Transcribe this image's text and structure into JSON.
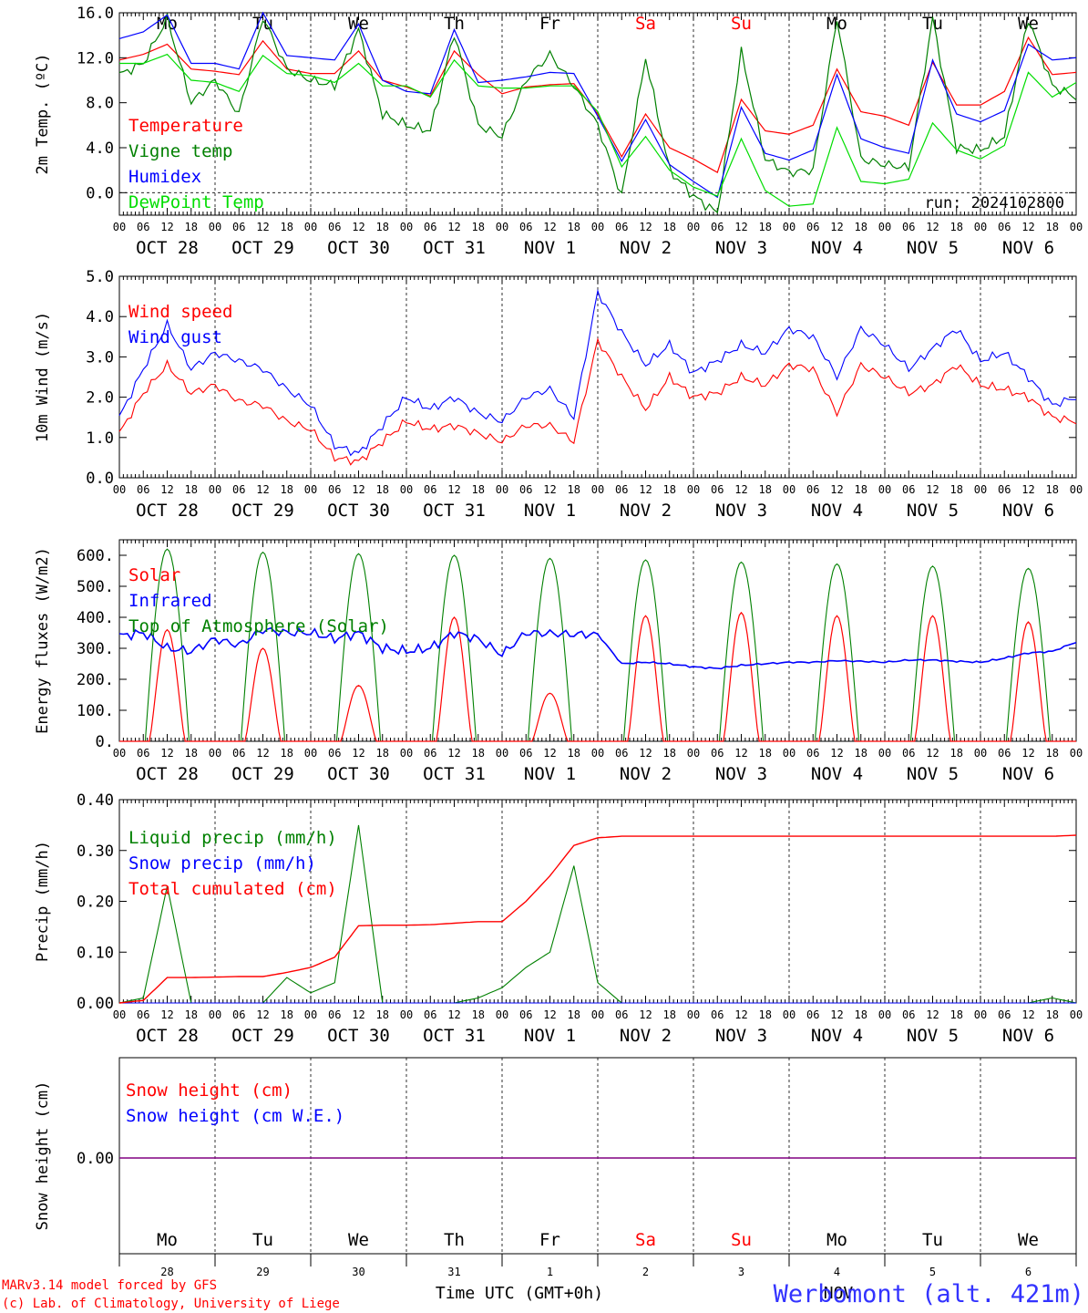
{
  "colors": {
    "red": "#ff0000",
    "blue": "#0000ff",
    "green": "#008000",
    "lightgreen": "#00dd00",
    "snow": "#800080"
  },
  "days": [
    "Mo",
    "Tu",
    "We",
    "Th",
    "Fr",
    "Sa",
    "Su",
    "Mo",
    "Tu",
    "We"
  ],
  "weekend_days": [
    "Sa",
    "Su"
  ],
  "date_labels": [
    "OCT 28",
    "OCT 29",
    "OCT 30",
    "OCT 31",
    "NOV 1",
    "NOV 2",
    "NOV 3",
    "NOV 4",
    "NOV 5",
    "NOV 6"
  ],
  "hour_labels": [
    "00",
    "06",
    "12",
    "18"
  ],
  "hour_label_end": "00",
  "bottom_day_numbers": [
    "28",
    "29",
    "30",
    "31",
    "1",
    "2",
    "3",
    "4",
    "5",
    "6"
  ],
  "footer": {
    "model_line": "MARv3.14 model forced by GFS",
    "credit_line": "(c) Lab. of Climatology, University of Liege",
    "xlabel": "Time UTC (GMT+0h)",
    "month_label": "NOV",
    "station": "Werbomont (alt. 421m)"
  },
  "chart_data": [
    {
      "type": "line",
      "ylabel": "2m Temp. (ºC)",
      "ylim": [
        -2,
        16
      ],
      "yticks": [
        "0.0",
        "4.0",
        "8.0",
        "12.0",
        "16.0"
      ],
      "annotation": "run: 2024102800",
      "x_hours": [
        0,
        6,
        12,
        18,
        24,
        30,
        36,
        42,
        48,
        54,
        60,
        66,
        72,
        78,
        84,
        90,
        96,
        102,
        108,
        114,
        120,
        126,
        132,
        138,
        144,
        150,
        156,
        162,
        168,
        174,
        180,
        186,
        192,
        198,
        204,
        210,
        216,
        222,
        228,
        234,
        240
      ],
      "series": [
        {
          "name": "Temperature",
          "color": "red",
          "values": [
            11.8,
            12.3,
            13.2,
            11.0,
            10.8,
            10.5,
            13.5,
            11.0,
            10.6,
            10.6,
            12.6,
            10.0,
            9.4,
            8.6,
            12.6,
            10.5,
            8.8,
            9.4,
            9.6,
            9.7,
            7.0,
            3.2,
            7.0,
            4.0,
            3.0,
            1.8,
            8.3,
            5.5,
            5.2,
            6.0,
            11.0,
            7.2,
            6.8,
            6.0,
            11.6,
            7.8,
            7.8,
            9.0,
            13.8,
            10.5,
            10.7
          ]
        },
        {
          "name": "Vigne temp",
          "color": "green",
          "values": [
            10.5,
            11.5,
            15.5,
            8.0,
            10.0,
            7.0,
            15.6,
            11.0,
            10.0,
            9.5,
            14.5,
            7.0,
            6.0,
            5.5,
            14.2,
            6.0,
            5.0,
            10.0,
            12.3,
            9.5,
            6.0,
            -0.3,
            12.0,
            2.0,
            -0.3,
            -1.8,
            12.5,
            3.0,
            1.8,
            2.0,
            15.5,
            3.0,
            2.5,
            2.2,
            15.5,
            4.0,
            3.8,
            5.0,
            15.5,
            9.5,
            8.5
          ]
        },
        {
          "name": "Humidex",
          "color": "blue",
          "values": [
            13.7,
            14.3,
            15.8,
            11.5,
            11.5,
            11.0,
            16.0,
            12.2,
            12.0,
            11.8,
            15.0,
            10.0,
            9.0,
            8.8,
            14.5,
            9.8,
            10.0,
            10.3,
            10.7,
            10.6,
            6.8,
            2.8,
            6.5,
            2.5,
            1.0,
            -0.4,
            7.6,
            3.5,
            2.9,
            3.8,
            10.5,
            4.8,
            4.0,
            3.5,
            11.8,
            7.0,
            6.3,
            7.3,
            13.2,
            11.8,
            12.0
          ]
        },
        {
          "name": "DewPoint Temp",
          "color": "lightgreen",
          "values": [
            11.5,
            11.5,
            12.3,
            10.0,
            9.8,
            9.0,
            12.2,
            10.6,
            10.4,
            9.8,
            11.5,
            9.5,
            9.5,
            8.5,
            11.8,
            9.5,
            9.3,
            9.3,
            9.5,
            9.5,
            7.2,
            2.3,
            5.0,
            2.0,
            0.5,
            -0.3,
            4.8,
            0.2,
            -1.2,
            -1.0,
            5.8,
            1.0,
            0.8,
            1.2,
            6.2,
            3.8,
            3.0,
            4.2,
            10.7,
            8.5,
            9.8
          ]
        }
      ]
    },
    {
      "type": "line",
      "ylabel": "10m Wind (m/s)",
      "ylim": [
        0,
        5
      ],
      "yticks": [
        "0.0",
        "1.0",
        "2.0",
        "3.0",
        "4.0",
        "5.0"
      ],
      "x_hours": [
        0,
        6,
        12,
        18,
        24,
        30,
        36,
        42,
        48,
        54,
        60,
        66,
        72,
        78,
        84,
        90,
        96,
        102,
        108,
        114,
        120,
        126,
        132,
        138,
        144,
        150,
        156,
        162,
        168,
        174,
        180,
        186,
        192,
        198,
        204,
        210,
        216,
        222,
        228,
        234,
        240
      ],
      "series": [
        {
          "name": "Wind speed",
          "color": "red",
          "values": [
            1.1,
            2.1,
            2.8,
            2.1,
            2.3,
            1.9,
            1.8,
            1.4,
            1.2,
            0.5,
            0.4,
            0.9,
            1.4,
            1.2,
            1.3,
            1.1,
            0.9,
            1.3,
            1.3,
            0.9,
            3.4,
            2.5,
            1.7,
            2.5,
            2.0,
            2.1,
            2.5,
            2.3,
            2.8,
            2.7,
            1.6,
            2.8,
            2.5,
            2.1,
            2.3,
            2.8,
            2.3,
            2.2,
            2.0,
            1.5,
            1.4
          ]
        },
        {
          "name": "Wind gust",
          "color": "blue",
          "values": [
            1.5,
            2.7,
            3.8,
            2.7,
            3.1,
            2.9,
            2.7,
            2.2,
            1.8,
            0.8,
            0.6,
            1.3,
            2.0,
            1.7,
            2.0,
            1.6,
            1.4,
            2.0,
            2.2,
            1.5,
            4.6,
            3.6,
            2.8,
            3.3,
            2.6,
            2.9,
            3.3,
            3.1,
            3.7,
            3.5,
            2.5,
            3.7,
            3.3,
            2.7,
            3.2,
            3.7,
            2.9,
            3.1,
            2.5,
            1.8,
            2.0
          ]
        }
      ]
    },
    {
      "type": "line",
      "ylabel": "Energy fluxes (W/m2)",
      "ylim": [
        0,
        650
      ],
      "yticks": [
        "0.",
        "100.",
        "200.",
        "300.",
        "400.",
        "500.",
        "600."
      ],
      "x_hours": [
        0,
        6,
        12,
        18,
        24,
        30,
        36,
        42,
        48,
        54,
        60,
        66,
        72,
        78,
        84,
        90,
        96,
        102,
        108,
        114,
        120,
        126,
        132,
        138,
        144,
        150,
        156,
        162,
        168,
        174,
        180,
        186,
        192,
        198,
        204,
        210,
        216,
        222,
        228,
        234,
        240
      ],
      "solar_peaks_wm2": [
        360,
        300,
        180,
        400,
        155,
        405,
        415,
        405,
        405,
        385
      ],
      "toa_peaks_wm2": [
        620,
        610,
        605,
        600,
        590,
        585,
        578,
        572,
        565,
        558
      ],
      "series": [
        {
          "name": "Solar",
          "color": "red",
          "values": []
        },
        {
          "name": "Infrared",
          "color": "blue",
          "values": [
            340,
            350,
            300,
            290,
            330,
            310,
            360,
            350,
            350,
            330,
            350,
            300,
            290,
            300,
            350,
            330,
            280,
            350,
            348,
            345,
            345,
            250,
            255,
            250,
            240,
            235,
            245,
            250,
            255,
            255,
            260,
            258,
            255,
            262,
            262,
            258,
            255,
            268,
            285,
            290,
            320
          ]
        },
        {
          "name": "Top of Atmosphere (Solar)",
          "color": "green",
          "values": []
        }
      ]
    },
    {
      "type": "line",
      "ylabel": "Precip (mm/h)",
      "ylim": [
        0,
        0.4
      ],
      "yticks": [
        "0.00",
        "0.10",
        "0.20",
        "0.30",
        "0.40"
      ],
      "x_hours": [
        0,
        6,
        12,
        18,
        24,
        30,
        36,
        42,
        48,
        54,
        60,
        66,
        72,
        78,
        84,
        90,
        96,
        102,
        108,
        114,
        120,
        126,
        132,
        138,
        144,
        150,
        156,
        162,
        168,
        174,
        180,
        186,
        192,
        198,
        204,
        210,
        216,
        222,
        228,
        234,
        240
      ],
      "series": [
        {
          "name": "Liquid precip (mm/h)",
          "color": "green",
          "values": [
            0,
            0.01,
            0.23,
            0,
            0,
            0,
            0,
            0.05,
            0.02,
            0.04,
            0.35,
            0,
            0,
            0,
            0,
            0.01,
            0.03,
            0.07,
            0.1,
            0.27,
            0.04,
            0,
            0,
            0,
            0,
            0,
            0,
            0,
            0,
            0,
            0,
            0,
            0,
            0,
            0,
            0,
            0,
            0,
            0,
            0.01,
            0
          ]
        },
        {
          "name": "Snow precip (mm/h)",
          "color": "blue",
          "values": [
            0,
            0,
            0,
            0,
            0,
            0,
            0,
            0,
            0,
            0,
            0,
            0,
            0,
            0,
            0,
            0,
            0,
            0,
            0,
            0,
            0,
            0,
            0,
            0,
            0,
            0,
            0,
            0,
            0,
            0,
            0,
            0,
            0,
            0,
            0,
            0,
            0,
            0,
            0,
            0,
            0
          ]
        },
        {
          "name": "Total cumulated (cm)",
          "color": "red",
          "values": [
            0,
            0.005,
            0.05,
            0.05,
            0.051,
            0.052,
            0.052,
            0.06,
            0.07,
            0.09,
            0.152,
            0.153,
            0.153,
            0.154,
            0.157,
            0.16,
            0.16,
            0.2,
            0.25,
            0.31,
            0.325,
            0.328,
            0.328,
            0.328,
            0.328,
            0.328,
            0.328,
            0.328,
            0.328,
            0.328,
            0.328,
            0.328,
            0.328,
            0.328,
            0.328,
            0.328,
            0.328,
            0.328,
            0.328,
            0.328,
            0.33
          ]
        }
      ]
    },
    {
      "type": "line",
      "ylabel": "Snow height (cm)",
      "yticks": [
        "0.00"
      ],
      "series": [
        {
          "name": "Snow height (cm)",
          "color": "red",
          "values": [
            0,
            0
          ]
        },
        {
          "name": "Snow height (cm W.E.)",
          "color": "blue",
          "values": [
            0,
            0
          ]
        }
      ]
    }
  ]
}
